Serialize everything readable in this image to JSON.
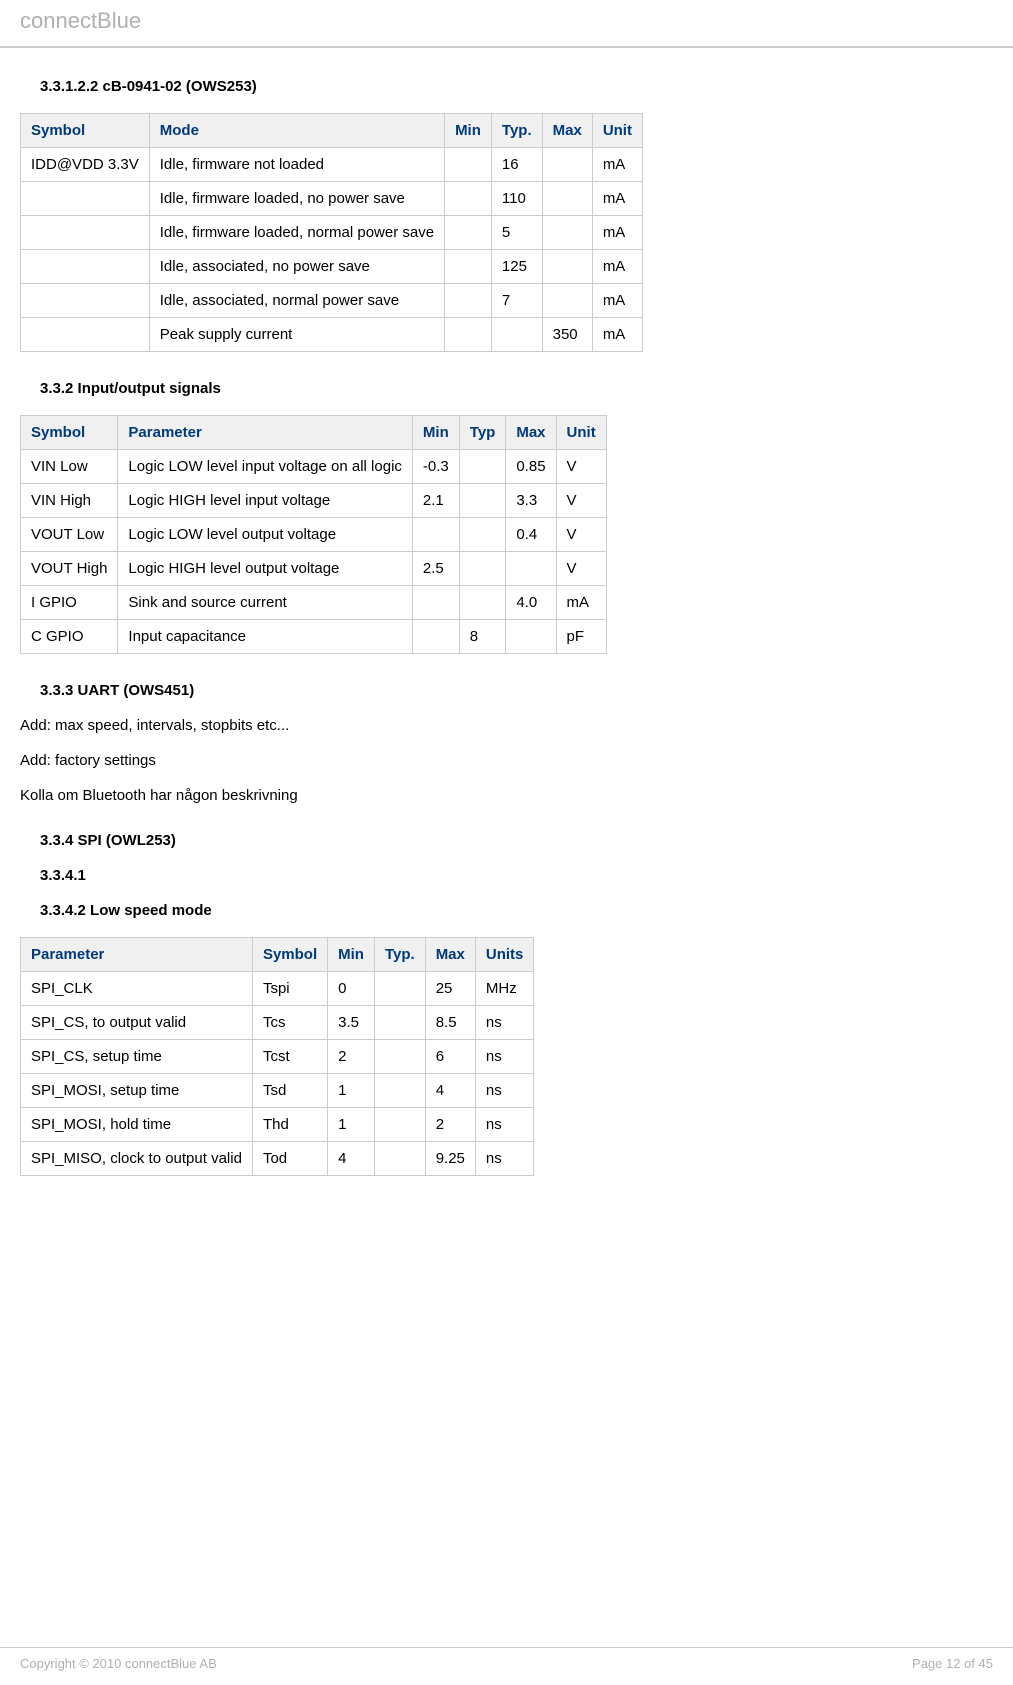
{
  "header": {
    "brand": "connectBlue"
  },
  "section1": {
    "heading": "3.3.1.2.2 cB-0941-02 (OWS253)",
    "table": {
      "columns": [
        "Symbol",
        "Mode",
        "Min",
        "Typ.",
        "Max",
        "Unit"
      ],
      "rows": [
        [
          "IDD@VDD 3.3V",
          "Idle, firmware not loaded",
          "",
          "16",
          "",
          "mA"
        ],
        [
          "",
          "Idle, firmware loaded, no power save",
          "",
          "110",
          "",
          "mA"
        ],
        [
          "",
          "Idle, firmware loaded, normal power save",
          "",
          "5",
          "",
          "mA"
        ],
        [
          "",
          "Idle, associated, no power save",
          "",
          "125",
          "",
          "mA"
        ],
        [
          "",
          "Idle, associated, normal power save",
          "",
          "7",
          "",
          "mA"
        ],
        [
          "",
          "Peak supply current",
          "",
          "",
          "350",
          "mA"
        ]
      ]
    }
  },
  "section2": {
    "heading": "3.3.2 Input/output signals",
    "table": {
      "columns": [
        "Symbol",
        "Parameter",
        "Min",
        "Typ",
        "Max",
        "Unit"
      ],
      "rows": [
        [
          "VIN Low",
          "Logic LOW level input voltage on all logic",
          "-0.3",
          "",
          "0.85",
          "V"
        ],
        [
          "VIN High",
          "Logic HIGH level input voltage",
          "2.1",
          "",
          "3.3",
          "V"
        ],
        [
          "VOUT Low",
          "Logic LOW level output voltage",
          "",
          "",
          "0.4",
          "V"
        ],
        [
          "VOUT High",
          "Logic HIGH level output voltage",
          "2.5",
          "",
          "",
          "V"
        ],
        [
          "I GPIO",
          "Sink and source current",
          "",
          "",
          "4.0",
          "mA"
        ],
        [
          "C GPIO",
          "Input capacitance",
          "",
          "8",
          "",
          "pF"
        ]
      ]
    }
  },
  "section3": {
    "heading": "3.3.3 UART (OWS451)",
    "para1": "Add: max speed, intervals, stopbits etc...",
    "para2": "Add: factory settings",
    "para3": "Kolla om Bluetooth har någon beskrivning"
  },
  "section4": {
    "heading": "3.3.4 SPI (OWL253)",
    "sub1": "3.3.4.1",
    "sub2": "3.3.4.2 Low speed mode",
    "table": {
      "columns": [
        "Parameter",
        "Symbol",
        "Min",
        "Typ.",
        "Max",
        "Units"
      ],
      "rows": [
        [
          "SPI_CLK",
          "Tspi",
          "0",
          "",
          "25",
          "MHz"
        ],
        [
          "SPI_CS, to output valid",
          "Tcs",
          "3.5",
          "",
          "8.5",
          "ns"
        ],
        [
          "SPI_CS, setup time",
          "Tcst",
          "2",
          "",
          "6",
          "ns"
        ],
        [
          "SPI_MOSI, setup time",
          "Tsd",
          "1",
          "",
          "4",
          "ns"
        ],
        [
          "SPI_MOSI, hold time",
          "Thd",
          "1",
          "",
          "2",
          "ns"
        ],
        [
          "SPI_MISO, clock to output valid",
          "Tod",
          "4",
          "",
          "9.25",
          "ns"
        ]
      ]
    }
  },
  "footer": {
    "left": "Copyright © 2010 connectBlue AB",
    "right": "Page 12 of 45"
  }
}
